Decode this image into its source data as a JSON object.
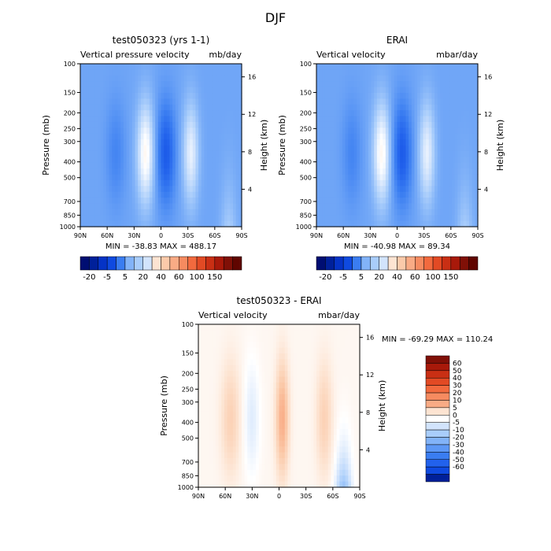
{
  "figure_title": "DJF",
  "colors": {
    "cool": [
      "#000e72",
      "#00209a",
      "#0533c6",
      "#0f4ae0",
      "#2262ec",
      "#3a7df1",
      "#5d98f5",
      "#82b3f8",
      "#a9cdfb",
      "#d2e4fc"
    ],
    "warm": [
      "#fde4d2",
      "#fbcaaa",
      "#f9ab85",
      "#f68b60",
      "#f26a3e",
      "#e24a24",
      "#c92f14",
      "#a8190a",
      "#801007",
      "#600500"
    ]
  },
  "chart_data": [
    {
      "type": "heatmap",
      "title": "test050323 (yrs 1-1)",
      "subtitle_left": "Vertical pressure velocity",
      "subtitle_right": "mb/day",
      "ylabel": "Pressure (mb)",
      "ylabel_right": "Height (km)",
      "xticks": [
        "90N",
        "60N",
        "30N",
        "0",
        "30S",
        "60S",
        "90S"
      ],
      "yticks": [
        100,
        150,
        200,
        250,
        300,
        400,
        500,
        700,
        850,
        1000
      ],
      "ytick_labels": [
        "100",
        "150",
        "200",
        "250",
        "300",
        "400",
        "500",
        "700",
        "850",
        "1000"
      ],
      "height_ticks": [
        4,
        8,
        12,
        16
      ],
      "stats": "MIN = -38.83   MAX = 488.17",
      "colorbar": {
        "orientation": "horizontal",
        "labels": [
          "-20",
          "-5",
          "5",
          "20",
          "40",
          "60",
          "100",
          "150"
        ],
        "colors": [
          "#000e72",
          "#00209a",
          "#0533c6",
          "#0f4ae0",
          "#3a7df1",
          "#82b3f8",
          "#a9cdfb",
          "#d2e4fc",
          "#fde4d2",
          "#fbcaaa",
          "#f9ab85",
          "#f68b60",
          "#f26a3e",
          "#e24a24",
          "#c92f14",
          "#a8190a",
          "#801007",
          "#600500"
        ]
      }
    },
    {
      "type": "heatmap",
      "title": "ERAI",
      "subtitle_left": "Vertical velocity",
      "subtitle_right": "mbar/day",
      "ylabel": "Pressure (mb)",
      "ylabel_right": "Height (km)",
      "xticks": [
        "90N",
        "60N",
        "30N",
        "0",
        "30S",
        "60S",
        "90S"
      ],
      "yticks": [
        100,
        150,
        200,
        250,
        300,
        400,
        500,
        700,
        850,
        1000
      ],
      "ytick_labels": [
        "100",
        "150",
        "200",
        "250",
        "300",
        "400",
        "500",
        "700",
        "850",
        "1000"
      ],
      "height_ticks": [
        4,
        8,
        12,
        16
      ],
      "stats": "MIN = -40.98   MAX = 89.34",
      "colorbar": {
        "orientation": "horizontal",
        "labels": [
          "-20",
          "-5",
          "5",
          "20",
          "40",
          "60",
          "100",
          "150"
        ],
        "colors": [
          "#000e72",
          "#00209a",
          "#0533c6",
          "#0f4ae0",
          "#3a7df1",
          "#82b3f8",
          "#a9cdfb",
          "#d2e4fc",
          "#fde4d2",
          "#fbcaaa",
          "#f9ab85",
          "#f68b60",
          "#f26a3e",
          "#e24a24",
          "#c92f14",
          "#a8190a",
          "#801007",
          "#600500"
        ]
      }
    },
    {
      "type": "heatmap",
      "title": "test050323 - ERAI",
      "subtitle_left": "Vertical velocity",
      "subtitle_right": "mbar/day",
      "ylabel": "Pressure (mb)",
      "ylabel_right": "Height (km)",
      "xticks": [
        "90N",
        "60N",
        "30N",
        "0",
        "30S",
        "60S",
        "90S"
      ],
      "yticks": [
        100,
        150,
        200,
        250,
        300,
        400,
        500,
        700,
        850,
        1000
      ],
      "ytick_labels": [
        "100",
        "150",
        "200",
        "250",
        "300",
        "400",
        "500",
        "700",
        "850",
        "1000"
      ],
      "height_ticks": [
        4,
        8,
        12,
        16
      ],
      "stats": "MIN = -69.29   MAX = 110.24",
      "colorbar": {
        "orientation": "vertical",
        "labels": [
          "60",
          "50",
          "40",
          "30",
          "20",
          "10",
          "5",
          "0",
          "-5",
          "-10",
          "-20",
          "-30",
          "-40",
          "-50",
          "-60"
        ],
        "colors": [
          "#801007",
          "#a8190a",
          "#c92f14",
          "#e24a24",
          "#f26a3e",
          "#f68b60",
          "#f9ab85",
          "#fde4d2",
          "#ffffff",
          "#d2e4fc",
          "#a9cdfb",
          "#82b3f8",
          "#5d98f5",
          "#3a7df1",
          "#2262ec",
          "#0f4ae0",
          "#00209a"
        ]
      }
    }
  ]
}
